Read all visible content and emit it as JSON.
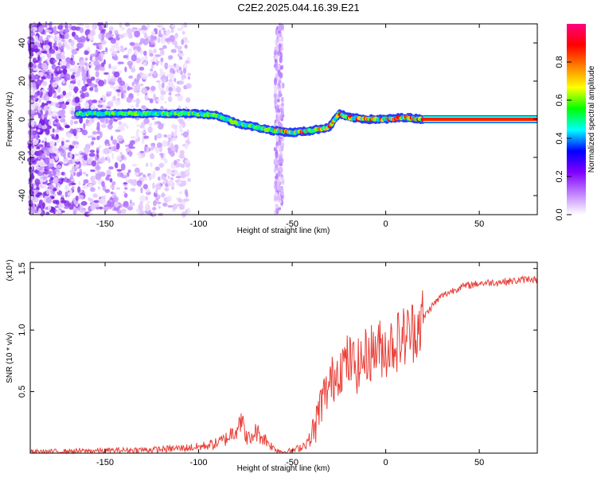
{
  "title": "C2E2.2025.044.16.39.E21",
  "chart_data": [
    {
      "type": "heatmap",
      "xlabel": "Height of straight line (km)",
      "ylabel": "Frequency (Hz)",
      "xlim": [
        -190,
        81
      ],
      "ylim": [
        -50,
        50
      ],
      "xticks": [
        -150,
        -100,
        -50,
        0,
        50
      ],
      "yticks": [
        -40,
        -20,
        0,
        20,
        40
      ],
      "colorbar": {
        "label": "Normalized spectral amplitude",
        "range": [
          0,
          1
        ],
        "ticks": [
          "0.0",
          "0.2",
          "0.4",
          "0.6",
          "0.8"
        ],
        "colors": [
          "#ffffff",
          "#c080ff",
          "#8000ff",
          "#0000ff",
          "#00ffff",
          "#00ff00",
          "#ffff00",
          "#ff8000",
          "#ff0000",
          "#ff0080"
        ]
      },
      "ridge": {
        "x": [
          -165,
          -150,
          -130,
          -110,
          -100,
          -90,
          -80,
          -70,
          -60,
          -50,
          -40,
          -30,
          -25,
          -20,
          -10,
          0,
          10,
          20,
          81
        ],
        "y": [
          3,
          3,
          3,
          3,
          3,
          2,
          -2,
          -4,
          -6,
          -7,
          -6,
          -4,
          3,
          1,
          0,
          0,
          1,
          0,
          0
        ]
      },
      "noise_region": {
        "x": [
          -190,
          -105
        ],
        "freq_range": [
          -50,
          50
        ]
      },
      "spike_x": -57
    },
    {
      "type": "line",
      "xlabel": "Height of straight line (km)",
      "ylabel": "SNR (10 * v/v)",
      "yscale_label": "(x10⁴)",
      "xlim": [
        -190,
        81
      ],
      "ylim": [
        0,
        1.55
      ],
      "xticks": [
        -150,
        -100,
        -50,
        0,
        50
      ],
      "yticks": [
        "0.5",
        "1.0",
        "1.5"
      ],
      "ytick_values": [
        0.5,
        1.0,
        1.5
      ],
      "color": "#e8413a",
      "series": [
        {
          "x": [
            -190,
            -150,
            -120,
            -100,
            -90,
            -85,
            -80,
            -78,
            -75,
            -72,
            -70,
            -65,
            -60,
            -55,
            -50,
            -45,
            -40,
            -37,
            -35,
            -30,
            -25,
            -20,
            -15,
            -10,
            -5,
            0,
            5,
            10,
            15,
            20,
            25,
            30,
            40,
            50,
            60,
            70,
            78,
            81
          ],
          "y": [
            0.01,
            0.02,
            0.03,
            0.05,
            0.08,
            0.12,
            0.2,
            0.3,
            0.15,
            0.1,
            0.18,
            0.12,
            0.04,
            0.01,
            0.02,
            0.05,
            0.12,
            0.25,
            0.4,
            0.55,
            0.7,
            0.75,
            0.7,
            0.8,
            0.85,
            0.85,
            0.9,
            0.95,
            1.0,
            1.1,
            1.2,
            1.28,
            1.35,
            1.38,
            1.39,
            1.4,
            1.42,
            1.4
          ]
        }
      ]
    }
  ]
}
